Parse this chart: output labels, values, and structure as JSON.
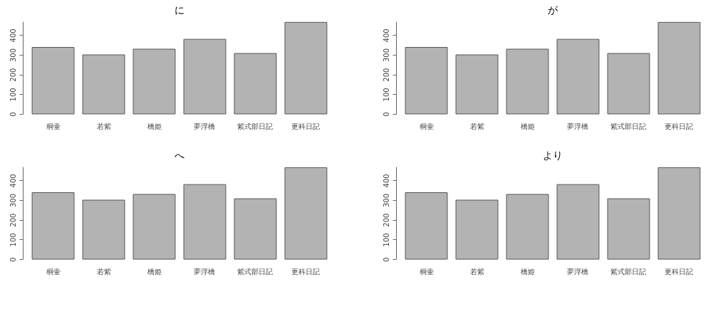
{
  "chart_data": [
    {
      "type": "bar",
      "title": "に",
      "categories": [
        "桐壷",
        "若紫",
        "橋姫",
        "夢浮橋",
        "紫式部日記",
        "更科日記"
      ],
      "values": [
        338,
        300,
        329,
        379,
        307,
        465
      ],
      "color": "#b3b3b3",
      "ylim": [
        0,
        470
      ],
      "yticks": [
        0,
        100,
        200,
        300,
        400
      ]
    },
    {
      "type": "bar",
      "title": "が",
      "categories": [
        "桐壷",
        "若紫",
        "橋姫",
        "夢浮橋",
        "紫式部日記",
        "更科日記"
      ],
      "values": [
        338,
        300,
        329,
        379,
        307,
        465
      ],
      "color": "#b3b3b3",
      "ylim": [
        0,
        470
      ],
      "yticks": [
        0,
        100,
        200,
        300,
        400
      ]
    },
    {
      "type": "bar",
      "title": "へ",
      "categories": [
        "桐壷",
        "若紫",
        "橋姫",
        "夢浮橋",
        "紫式部日記",
        "更科日記"
      ],
      "values": [
        338,
        300,
        329,
        379,
        307,
        465
      ],
      "color": "#b3b3b3",
      "ylim": [
        0,
        470
      ],
      "yticks": [
        0,
        100,
        200,
        300,
        400
      ]
    },
    {
      "type": "bar",
      "title": "より",
      "categories": [
        "桐壷",
        "若紫",
        "橋姫",
        "夢浮橋",
        "紫式部日記",
        "更科日記"
      ],
      "values": [
        338,
        300,
        329,
        379,
        307,
        465
      ],
      "color": "#b3b3b3",
      "ylim": [
        0,
        470
      ],
      "yticks": [
        0,
        100,
        200,
        300,
        400
      ]
    }
  ]
}
